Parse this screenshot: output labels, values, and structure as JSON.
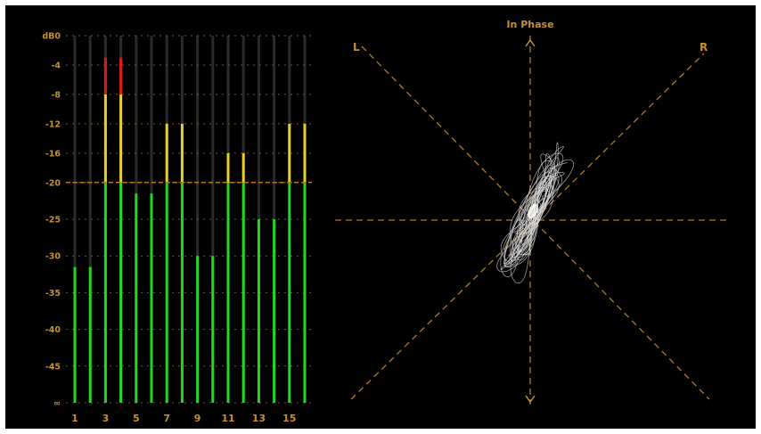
{
  "colors": {
    "background": "#000000",
    "label": "#c7902a",
    "green": "#22d622",
    "yellow": "#e8d02a",
    "red": "#e01a1a",
    "track": "#2b2b2b",
    "grid_dash": "#7a5a1e",
    "trace": "#dcdcdc"
  },
  "loudness_meter": {
    "scale_labels": [
      "dB0",
      "-4",
      "-8",
      "-12",
      "-16",
      "-20",
      "-25",
      "-30",
      "-35",
      "-40",
      "-45",
      "∞"
    ],
    "scale_values": [
      0,
      -4,
      -8,
      -12,
      -16,
      -20,
      -25,
      -30,
      -35,
      -40,
      -45,
      -50
    ],
    "channel_labels": [
      "1",
      "",
      "3",
      "",
      "5",
      "",
      "7",
      "",
      "9",
      "",
      "11",
      "",
      "13",
      "",
      "15",
      ""
    ],
    "channel_levels_db": [
      -31.5,
      -31.5,
      -3,
      -3,
      -21.5,
      -21.5,
      -12,
      -12,
      -30,
      -30,
      -16,
      -16,
      -25,
      -25,
      -12,
      -12
    ],
    "yellow_threshold_db": -20,
    "red_threshold_db": -8,
    "reference_line_db": -20
  },
  "phase_scope": {
    "top_label": "In Phase",
    "left_label": "L",
    "right_label": "R"
  }
}
